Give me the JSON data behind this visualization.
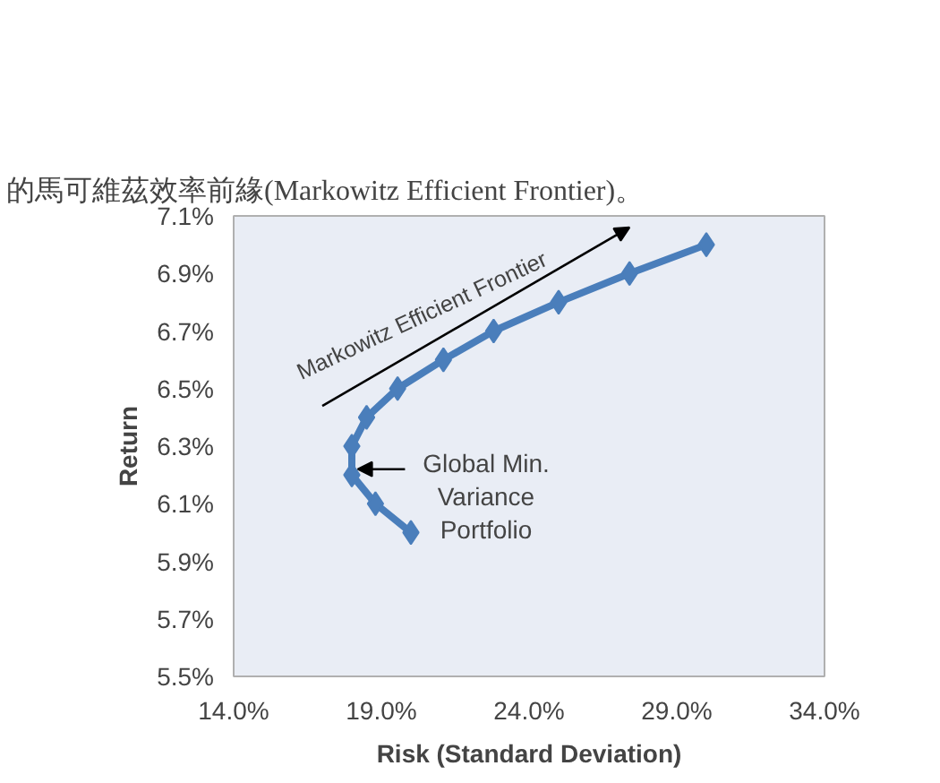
{
  "chart_data": {
    "type": "line",
    "xlabel": "Risk (Standard Deviation)",
    "ylabel": "Return",
    "x": [
      30.0,
      27.4,
      25.0,
      22.8,
      21.1,
      19.55,
      18.5,
      18.0,
      18.0,
      18.8,
      20.0
    ],
    "series": [
      {
        "color": "#4a7ebb",
        "values": [
          7.0,
          6.9,
          6.8,
          6.7,
          6.6,
          6.5,
          6.4,
          6.3,
          6.2,
          6.1,
          6.0
        ]
      }
    ],
    "marker": "diamond",
    "line_style": "solid",
    "grid": false,
    "xlim": [
      14.0,
      34.0
    ],
    "ylim": [
      5.5,
      7.1
    ],
    "xticks": [
      {
        "value": 14,
        "label": "14.0%"
      },
      {
        "value": 19,
        "label": "19.0%"
      },
      {
        "value": 24,
        "label": "24.0%"
      },
      {
        "value": 29,
        "label": "29.0%"
      },
      {
        "value": 34,
        "label": "34.0%"
      }
    ],
    "yticks": [
      {
        "value": 5.5,
        "label": "5.5%"
      },
      {
        "value": 5.7,
        "label": "5.7%"
      },
      {
        "value": 5.9,
        "label": "5.9%"
      },
      {
        "value": 6.1,
        "label": "6.1%"
      },
      {
        "value": 6.3,
        "label": "6.3%"
      },
      {
        "value": 6.5,
        "label": "6.5%"
      },
      {
        "value": 6.7,
        "label": "6.7%"
      },
      {
        "value": 6.9,
        "label": "6.9%"
      },
      {
        "value": 7.1,
        "label": "7.1%"
      }
    ],
    "annotations": [
      "的馬可維茲效率前緣(Markowitz Efficient Frontier)。",
      "Markowitz Efficient Frontier",
      {
        "text": "Global Min.\nVariance\nPortfolio",
        "x": 18.0,
        "y": 6.2
      }
    ]
  }
}
